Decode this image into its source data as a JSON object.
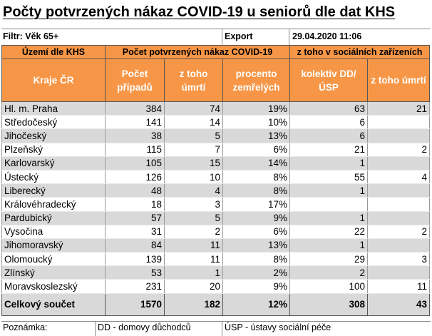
{
  "title": "Počty potvrzených nákaz COVID-19 u seniorů dle dat KHS",
  "filter": "Filtr: Věk 65+",
  "export_label": "Export",
  "export_date": "29.04.2020 11:06",
  "header_groups": {
    "region_area": "Území dle KHS",
    "cases_group": "Počet potvrzených nákaz COVID-19",
    "social_group": "z toho v sociálních zařízeních"
  },
  "columns": {
    "region": "Kraje ČR",
    "cases": "Počet případů",
    "deaths": "z toho úmrtí",
    "percent": "procento zemřelých",
    "collective": "kolektiv DD/ÚSP",
    "social_deaths": "z toho úmrtí"
  },
  "rows": [
    {
      "region": "Hl. m. Praha",
      "cases": "384",
      "deaths": "74",
      "percent": "19%",
      "collective": "63",
      "social_deaths": "21"
    },
    {
      "region": "Středočeský",
      "cases": "141",
      "deaths": "14",
      "percent": "10%",
      "collective": "6",
      "social_deaths": ""
    },
    {
      "region": "Jihočeský",
      "cases": "38",
      "deaths": "5",
      "percent": "13%",
      "collective": "6",
      "social_deaths": ""
    },
    {
      "region": "Plzeňský",
      "cases": "115",
      "deaths": "7",
      "percent": "6%",
      "collective": "21",
      "social_deaths": "2"
    },
    {
      "region": "Karlovarský",
      "cases": "105",
      "deaths": "15",
      "percent": "14%",
      "collective": "1",
      "social_deaths": ""
    },
    {
      "region": "Ústecký",
      "cases": "126",
      "deaths": "10",
      "percent": "8%",
      "collective": "55",
      "social_deaths": "4"
    },
    {
      "region": "Liberecký",
      "cases": "48",
      "deaths": "4",
      "percent": "8%",
      "collective": "1",
      "social_deaths": ""
    },
    {
      "region": "Královéhradecký",
      "cases": "18",
      "deaths": "3",
      "percent": "17%",
      "collective": "",
      "social_deaths": ""
    },
    {
      "region": "Pardubický",
      "cases": "57",
      "deaths": "5",
      "percent": "9%",
      "collective": "1",
      "social_deaths": ""
    },
    {
      "region": "Vysočina",
      "cases": "31",
      "deaths": "2",
      "percent": "6%",
      "collective": "22",
      "social_deaths": "2"
    },
    {
      "region": "Jihomoravský",
      "cases": "84",
      "deaths": "11",
      "percent": "13%",
      "collective": "1",
      "social_deaths": ""
    },
    {
      "region": "Olomoucký",
      "cases": "139",
      "deaths": "11",
      "percent": "8%",
      "collective": "29",
      "social_deaths": "3"
    },
    {
      "region": "Zlínský",
      "cases": "53",
      "deaths": "1",
      "percent": "2%",
      "collective": "2",
      "social_deaths": ""
    },
    {
      "region": "Moravskoslezský",
      "cases": "231",
      "deaths": "20",
      "percent": "9%",
      "collective": "100",
      "social_deaths": "11"
    }
  ],
  "total": {
    "label": "Celkový součet",
    "cases": "1570",
    "deaths": "182",
    "percent": "12%",
    "collective": "308",
    "social_deaths": "43"
  },
  "notes": {
    "label": "Poznámka:",
    "dd": "DD - domovy důchodců",
    "usp": "ÚSP - ústavy sociální péče"
  },
  "colors": {
    "header_orange": "#f79646",
    "row_gray": "#d9d9d9"
  }
}
